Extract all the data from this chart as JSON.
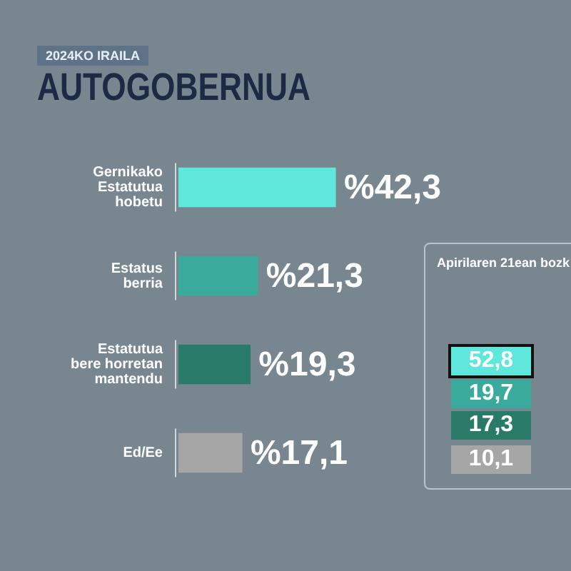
{
  "chart_data": [
    {
      "type": "bar",
      "orientation": "horizontal",
      "title": "AUTOGOBERNUA",
      "subtitle": "2024KO IRAILA",
      "categories": [
        "Gernikako Estatutua hobetu",
        "Estatus berria",
        "Estatutua bere horretan mantendu",
        "Ed/Ee"
      ],
      "values": [
        42.3,
        21.3,
        19.3,
        17.1
      ],
      "colors": [
        "#5ee8dc",
        "#3aaa9c",
        "#2a7a6a",
        "#a6a6a6"
      ],
      "value_labels": [
        "%42,3",
        "%21,3",
        "%19,3",
        "%17,1"
      ],
      "grid": false,
      "legend": false,
      "tick_labels": "y"
    },
    {
      "type": "other",
      "title": "Apirilaren 21ean bozk",
      "annotations": [
        "52,8",
        "19,7",
        "17,3",
        "10,1"
      ],
      "colors": [
        "#5ee8dc",
        "#3aaa9c",
        "#2a7a6a",
        "#a6a6a6"
      ]
    }
  ]
}
